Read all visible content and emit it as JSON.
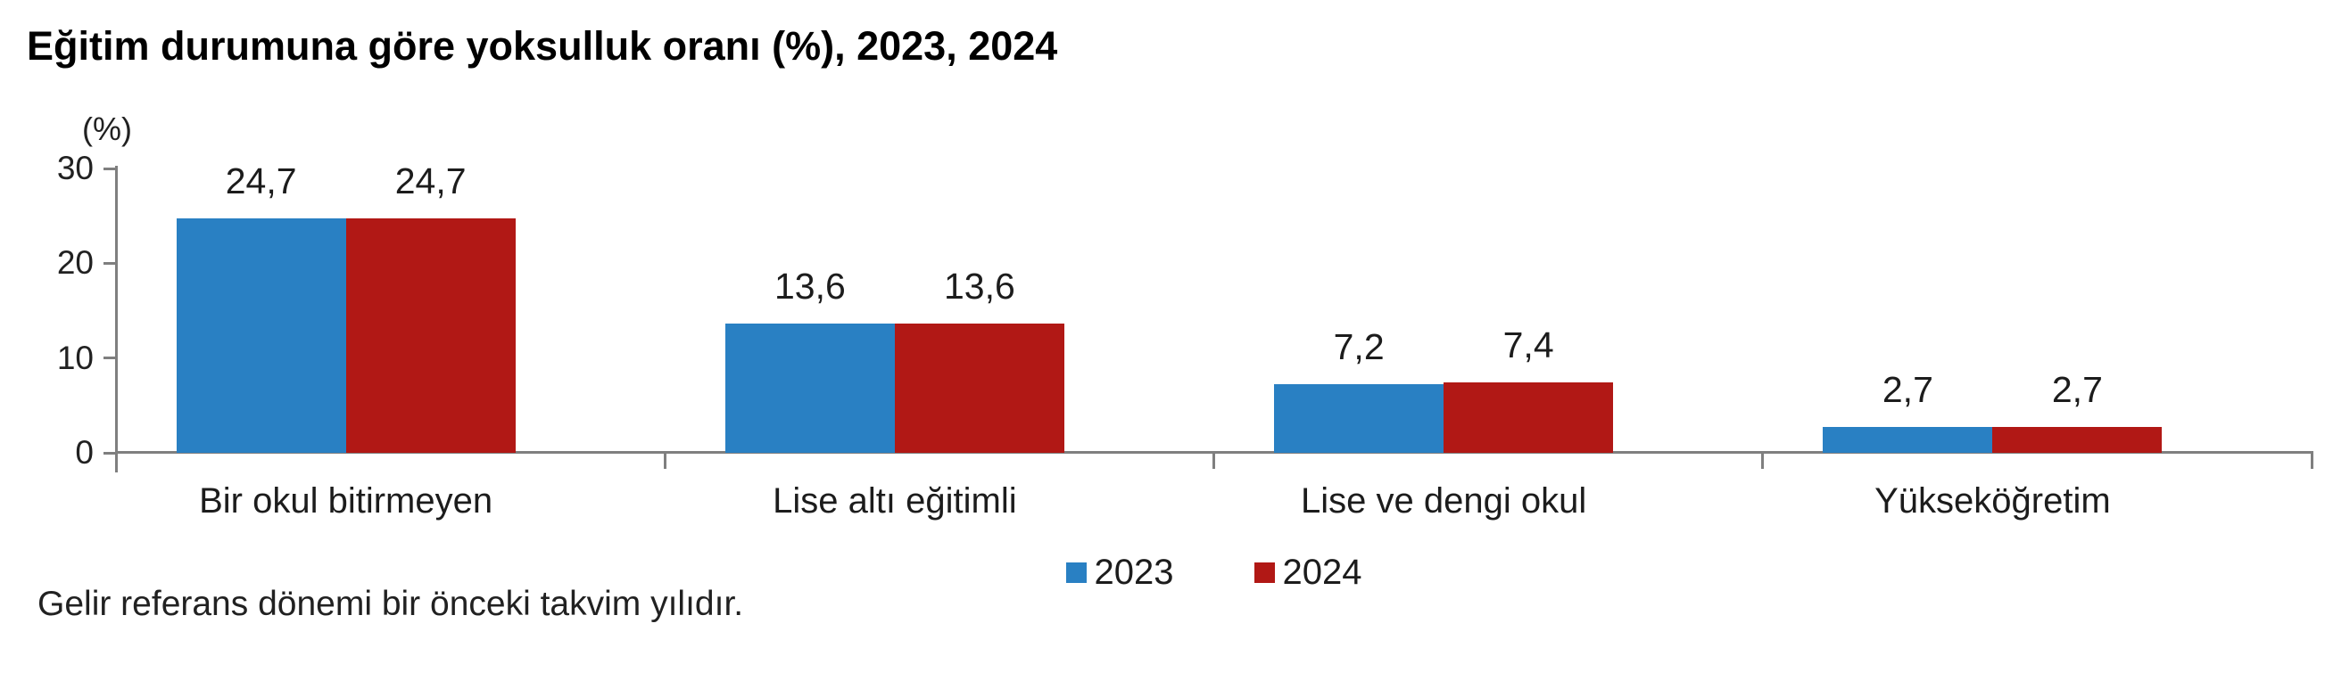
{
  "title": "Eğitim durumuna göre yoksulluk oranı (%), 2023, 2024",
  "footnote": "Gelir referans dönemi bir önceki takvim yılıdır.",
  "axis_unit_label": "(%)",
  "colors": {
    "series_2023": "#2980C3",
    "series_2024": "#B11815",
    "axis": "#7F7F7F",
    "label_text": "#1C1C1C"
  },
  "legend": {
    "items": [
      {
        "label": "2023",
        "color": "#2980C3"
      },
      {
        "label": "2024",
        "color": "#B11815"
      }
    ]
  },
  "chart_data": {
    "type": "bar",
    "title": "Eğitim durumuna göre yoksulluk oranı (%), 2023, 2024",
    "categories": [
      "Bir okul bitirmeyen",
      "Lise altı eğitimli",
      "Lise ve dengi okul",
      "Yükseköğretim"
    ],
    "series": [
      {
        "name": "2023",
        "color": "#2980C3",
        "values": [
          24.7,
          13.6,
          7.2,
          2.7
        ],
        "labels": [
          "24,7",
          "13,6",
          "7,2",
          "2,7"
        ]
      },
      {
        "name": "2024",
        "color": "#B11815",
        "values": [
          24.7,
          13.6,
          7.4,
          2.7
        ],
        "labels": [
          "24,7",
          "13,6",
          "7,4",
          "2,7"
        ]
      }
    ],
    "xlabel": "",
    "ylabel": "(%)",
    "ylim": [
      0,
      30
    ],
    "yticks": [
      0,
      10,
      20,
      30
    ],
    "grid": false,
    "legend_position": "bottom-center",
    "decimal_separator": ",",
    "footnote": "Gelir referans dönemi bir önceki takvim yılıdır."
  }
}
